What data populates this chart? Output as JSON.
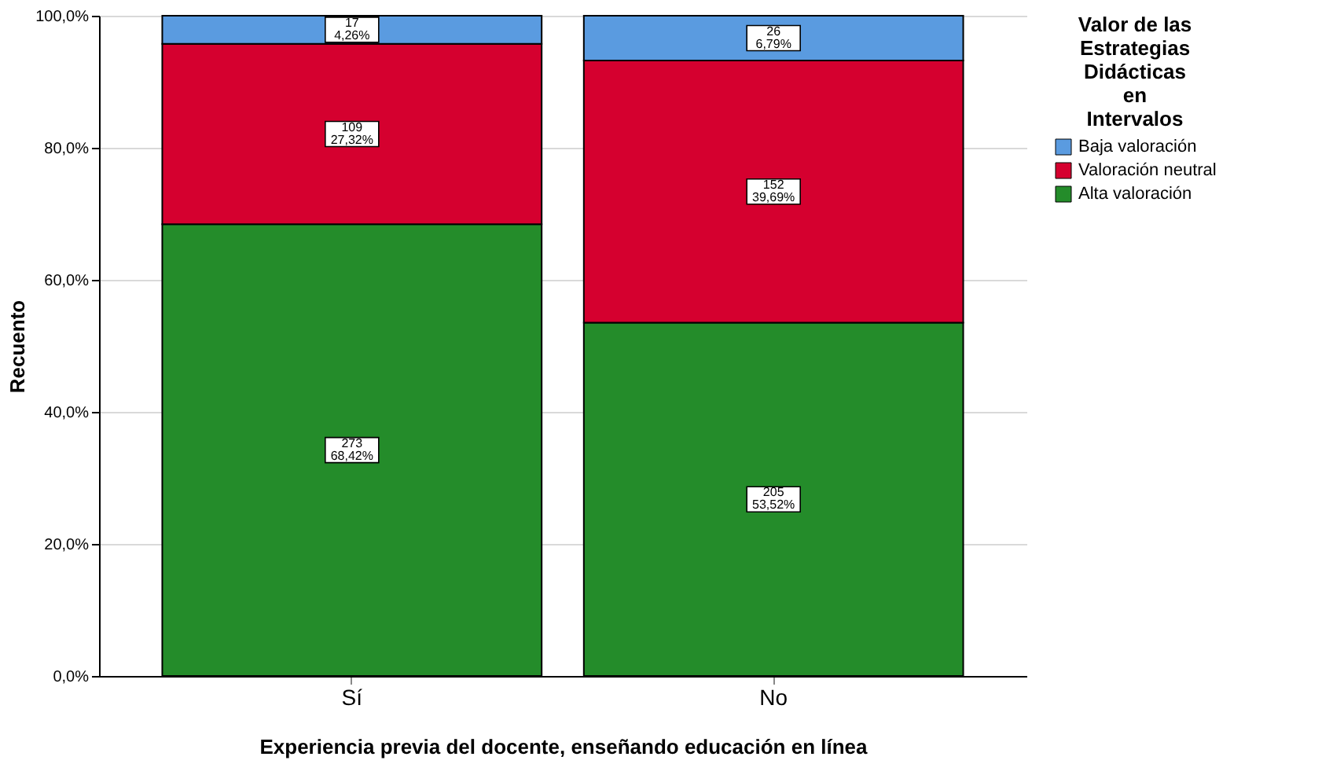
{
  "chart_data": {
    "type": "bar",
    "stacked": true,
    "xlabel": "Experiencia previa del docente, enseñando educación en línea",
    "ylabel": "Recuento",
    "legend_title": "Valor de las Estrategias Didácticas  en Intervalos",
    "legend": "top right",
    "grid": "y",
    "categories": [
      "Sí",
      "No"
    ],
    "ylim": [
      0,
      100
    ],
    "yticks": [
      {
        "value": 0,
        "label": "0,0%"
      },
      {
        "value": 20,
        "label": "20,0%"
      },
      {
        "value": 40,
        "label": "40,0%"
      },
      {
        "value": 60,
        "label": "60,0%"
      },
      {
        "value": 80,
        "label": "80,0%"
      },
      {
        "value": 100,
        "label": "100,0%"
      }
    ],
    "series": [
      {
        "name": "Alta valoración",
        "color": "#248c2a",
        "values": [
          68.42,
          53.52
        ],
        "value_labels": [
          "273\n68,42%",
          "205\n53,52%"
        ]
      },
      {
        "name": "Valoración neutral",
        "color": "#d5002f",
        "values": [
          27.32,
          39.69
        ],
        "value_labels": [
          "109\n27,32%",
          "152\n39,69%"
        ]
      },
      {
        "name": "Baja valoración",
        "color": "#5a9be0",
        "values": [
          4.26,
          6.79
        ],
        "value_labels": [
          "17\n4,26%",
          "26\n6,79%"
        ]
      }
    ]
  }
}
